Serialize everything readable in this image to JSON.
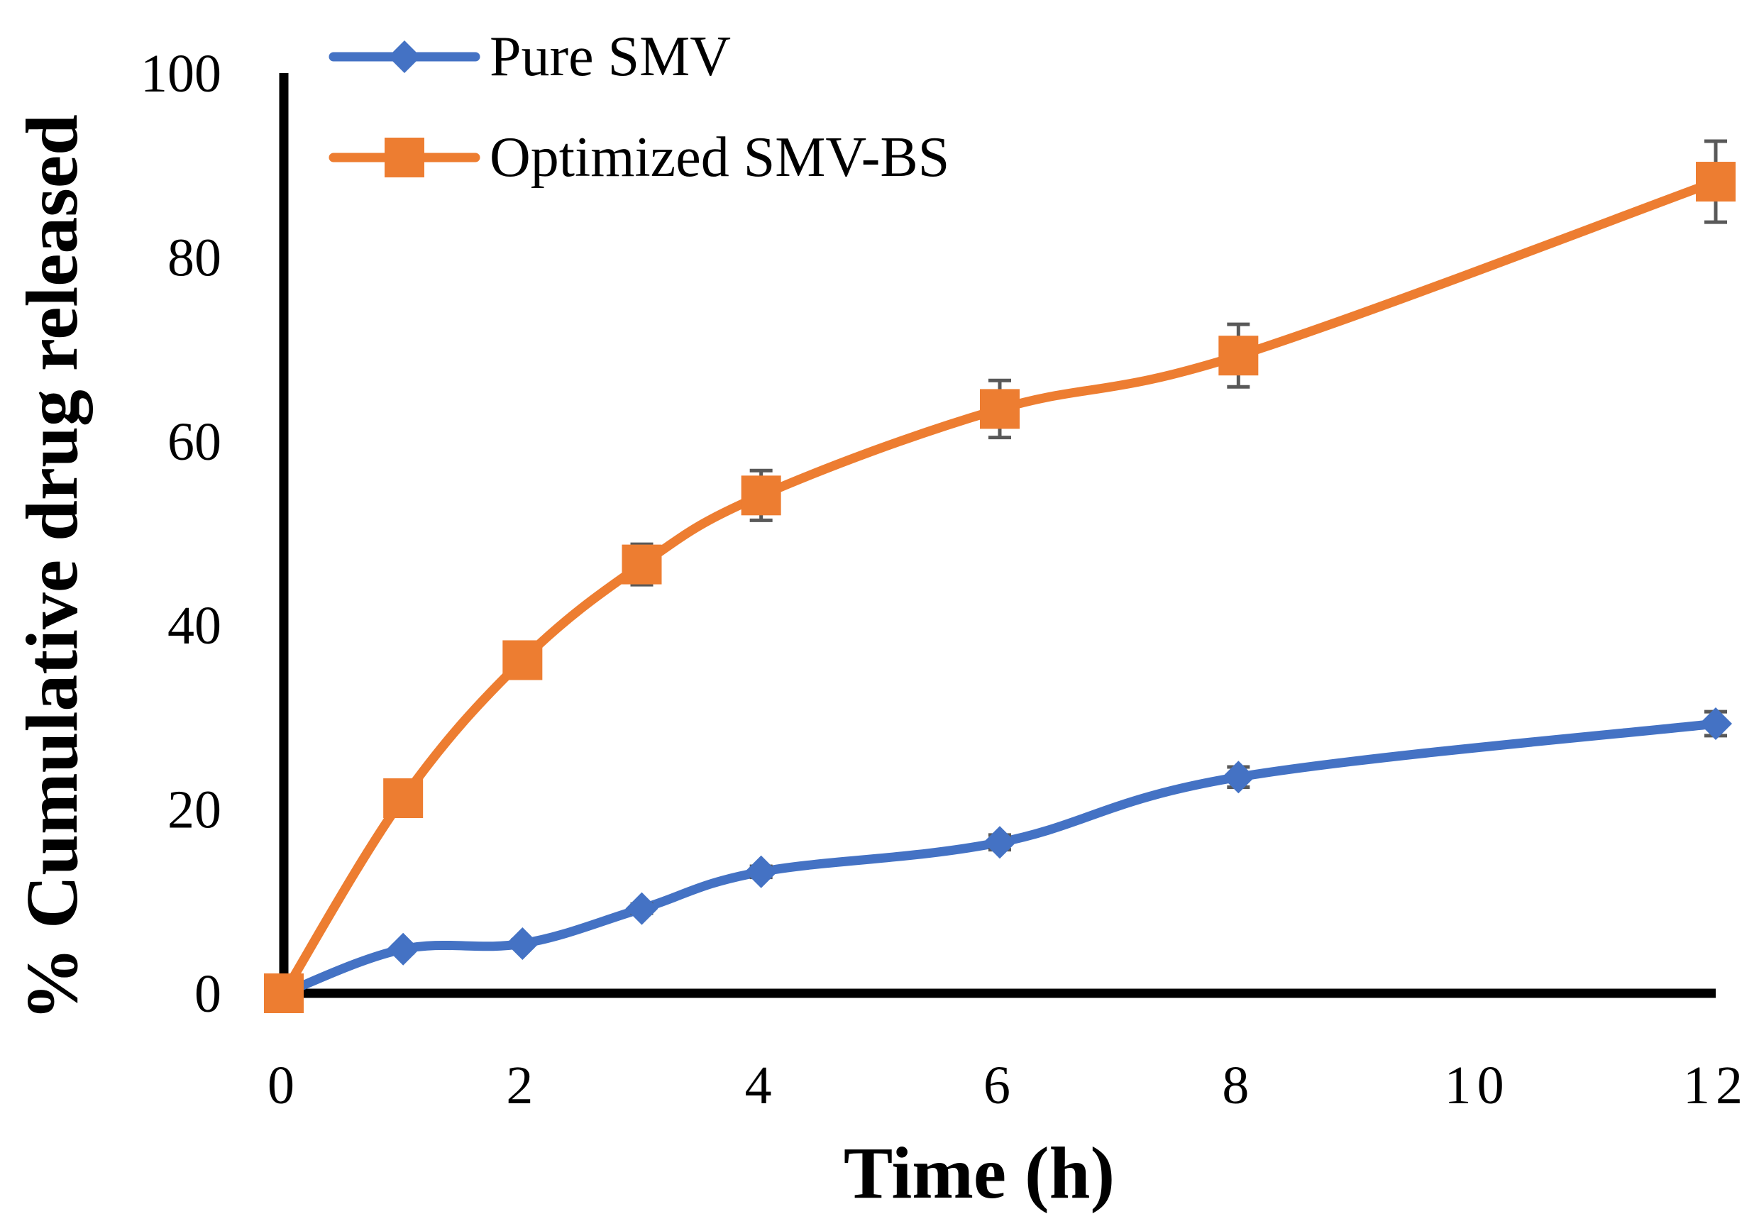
{
  "chart_data": {
    "type": "line",
    "title": "",
    "xlabel": "Time (h)",
    "ylabel": "% Cumulative drug released",
    "xlim": [
      0,
      12
    ],
    "ylim": [
      0,
      100
    ],
    "xticks": [
      0,
      2,
      4,
      6,
      8,
      10,
      12
    ],
    "yticks": [
      0,
      20,
      40,
      60,
      80,
      100
    ],
    "xtick_labels": [
      "0",
      "2",
      "4",
      "6",
      "8",
      "10",
      "12"
    ],
    "ytick_labels": [
      "0",
      "20",
      "40",
      "60",
      "80",
      "100"
    ],
    "grid": false,
    "legend_position": "top-left",
    "series": [
      {
        "name": "Pure SMV",
        "color": "#4472C4",
        "marker": "diamond",
        "x": [
          0,
          1,
          2,
          3,
          4,
          6,
          8,
          12
        ],
        "y": [
          0,
          4.8,
          5.4,
          9.2,
          13.2,
          16.4,
          23.5,
          29.3
        ],
        "err": [
          0,
          0.4,
          0.4,
          0.5,
          0.6,
          0.8,
          1.1,
          1.3
        ]
      },
      {
        "name": "Optimized SMV-BS",
        "color": "#ED7D31",
        "marker": "square",
        "x": [
          0,
          1,
          2,
          3,
          4,
          6,
          8,
          12
        ],
        "y": [
          0,
          21.2,
          36.2,
          46.6,
          54.1,
          63.5,
          69.3,
          88.2
        ],
        "err": [
          0,
          0.6,
          0.8,
          2.2,
          2.7,
          3.1,
          3.4,
          4.4
        ]
      }
    ]
  }
}
